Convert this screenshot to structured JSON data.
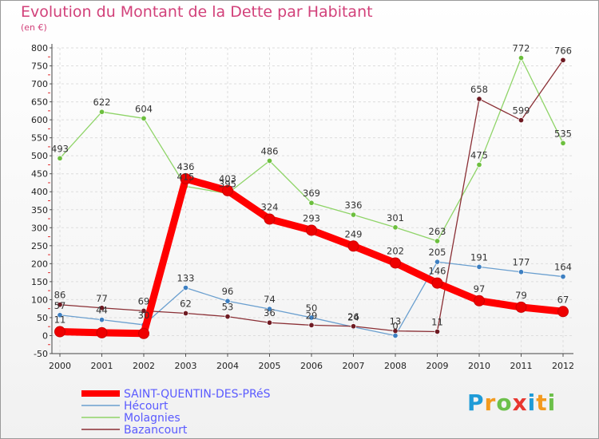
{
  "header": {
    "title": "Evolution du Montant de la Dette par Habitant",
    "subtitle": "(en €)"
  },
  "colors": {
    "title": "#d2417a",
    "legend_text": "#5a5aff"
  },
  "logo": {
    "text": "Proxiti",
    "letters": [
      {
        "ch": "P",
        "color": "#1f9bd7"
      },
      {
        "ch": "r",
        "color": "#f39a1e"
      },
      {
        "ch": "o",
        "color": "#6cc04a"
      },
      {
        "ch": "x",
        "color": "#e8362f"
      },
      {
        "ch": "i",
        "color": "#1f9bd7"
      },
      {
        "ch": "t",
        "color": "#f39a1e"
      },
      {
        "ch": "i",
        "color": "#6cc04a"
      }
    ]
  },
  "chart_data": {
    "type": "line",
    "x": [
      "2000",
      "2001",
      "2002",
      "2003",
      "2004",
      "2005",
      "2006",
      "2007",
      "2008",
      "2009",
      "2010",
      "2011",
      "2012"
    ],
    "ylim": [
      -50,
      800
    ],
    "yticks": [
      "-50",
      "0",
      "50",
      "100",
      "150",
      "200",
      "250",
      "300",
      "350",
      "400",
      "450",
      "500",
      "550",
      "600",
      "650",
      "700",
      "750",
      "800"
    ],
    "grid": true,
    "legend_position": "bottom-left",
    "series": [
      {
        "name": "Molagnies",
        "color": "#8fd468",
        "marker": "#6cbf3e",
        "width": 1.3,
        "values": [
          493,
          622,
          604,
          415,
          395,
          486,
          369,
          336,
          301,
          263,
          475,
          772,
          535
        ],
        "labels": [
          "493",
          "622",
          "604",
          "415",
          "395",
          "486",
          "369",
          "336",
          "301",
          "263",
          "475",
          "772",
          "535"
        ]
      },
      {
        "name": "Hécourt",
        "color": "#6a9fcf",
        "marker": "#3d7fc1",
        "width": 1.3,
        "values": [
          57,
          44,
          30,
          133,
          96,
          74,
          50,
          24,
          0,
          205,
          191,
          177,
          164
        ],
        "labels": [
          "57",
          "44",
          "30",
          "133",
          "96",
          "74",
          "50",
          "24",
          "0",
          "205",
          "191",
          "177",
          "164"
        ]
      },
      {
        "name": "Bazancourt",
        "color": "#8a2f35",
        "marker": "#6e1a22",
        "width": 1.3,
        "values": [
          86,
          77,
          69,
          62,
          53,
          36,
          29,
          26,
          13,
          11,
          658,
          599,
          766
        ],
        "labels": [
          "86",
          "77",
          "69",
          "62",
          "53",
          "36",
          "29",
          "26",
          "13",
          "11",
          "658",
          "599",
          "766"
        ]
      },
      {
        "name": "SAINT-QUENTIN-DES-PRéS",
        "color": "#ff0000",
        "marker": "#ee0000",
        "width": 9,
        "values": [
          11,
          8,
          6,
          436,
          403,
          324,
          293,
          249,
          202,
          146,
          97,
          79,
          67
        ],
        "labels": [
          "11",
          "",
          "",
          "436",
          "403",
          "324",
          "293",
          "249",
          "202",
          "146",
          "97",
          "79",
          "67"
        ]
      }
    ],
    "legend_order": [
      "SAINT-QUENTIN-DES-PRéS",
      "Hécourt",
      "Molagnies",
      "Bazancourt"
    ]
  }
}
